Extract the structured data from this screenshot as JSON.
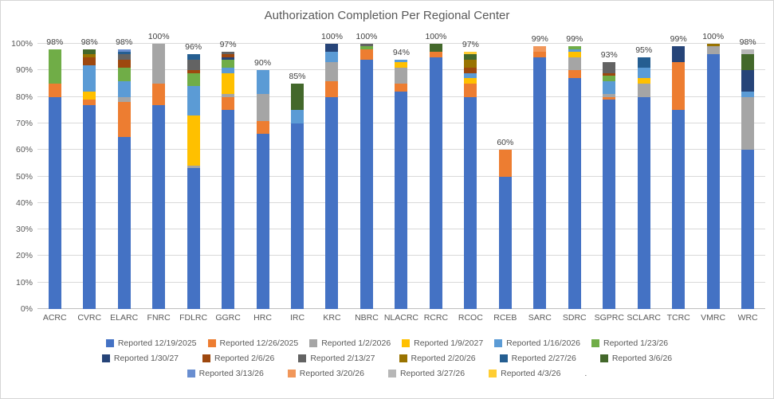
{
  "title": "Authorization Completion Per Regional Center",
  "chart_data": {
    "type": "bar",
    "stacked": true,
    "title": "Authorization Completion Per Regional Center",
    "xlabel": "",
    "ylabel": "",
    "ylim": [
      0,
      100
    ],
    "ytick_labels": [
      "0%",
      "10%",
      "20%",
      "30%",
      "40%",
      "50%",
      "60%",
      "70%",
      "80%",
      "90%",
      "100%"
    ],
    "grid": true,
    "legend_position": "bottom",
    "series": [
      {
        "name": "Reported 12/19/2025",
        "color": "#4472C4"
      },
      {
        "name": "Reported 12/26/2025",
        "color": "#ED7D31"
      },
      {
        "name": "Reported 1/2/2026",
        "color": "#A5A5A5"
      },
      {
        "name": "Reported 1/9/2027",
        "color": "#FFC000"
      },
      {
        "name": "Reported 1/16/2026",
        "color": "#5B9BD5"
      },
      {
        "name": "Reported 1/23/26",
        "color": "#70AD47"
      },
      {
        "name": "Reported 1/30/27",
        "color": "#264478"
      },
      {
        "name": "Reported 2/6/26",
        "color": "#9E480E"
      },
      {
        "name": "Reported 2/13/27",
        "color": "#636363"
      },
      {
        "name": "Reported 2/20/26",
        "color": "#997300"
      },
      {
        "name": "Reported 2/27/26",
        "color": "#255E91"
      },
      {
        "name": "Reported 3/6/26",
        "color": "#43682B"
      },
      {
        "name": "Reported 3/13/26",
        "color": "#698ED0"
      },
      {
        "name": "Reported 3/20/26",
        "color": "#F1975A"
      },
      {
        "name": "Reported 3/27/26",
        "color": "#B7B7B7"
      },
      {
        "name": "Reported 4/3/26",
        "color": "#FFCD33"
      },
      {
        "name": ".",
        "color": null
      }
    ],
    "legend_rows": [
      [
        0,
        1,
        2,
        3,
        4,
        5
      ],
      [
        6,
        7,
        8,
        9,
        10,
        11
      ],
      [
        12,
        13,
        14,
        15,
        16
      ]
    ],
    "categories": [
      "ACRC",
      "CVRC",
      "ELARC",
      "FNRC",
      "FDLRC",
      "GGRC",
      "HRC",
      "IRC",
      "KRC",
      "NBRC",
      "NLACRC",
      "RCRC",
      "RCOC",
      "RCEB",
      "SARC",
      "SDRC",
      "SGPRC",
      "SCLARC",
      "TCRC",
      "VMRC",
      "WRC"
    ],
    "bar_totals": [
      "98%",
      "98%",
      "98%",
      "100%",
      "96%",
      "97%",
      "90%",
      "85%",
      "100%",
      "100%",
      "94%",
      "100%",
      "97%",
      "60%",
      "99%",
      "99%",
      "93%",
      "95%",
      "99%",
      "100%",
      "98%"
    ],
    "bars": [
      {
        "category": "ACRC",
        "total_label": "98%",
        "segments": [
          {
            "series": "Reported 12/19/2025",
            "value": 80
          },
          {
            "series": "Reported 12/26/2025",
            "value": 5
          },
          {
            "series": "Reported 1/23/26",
            "value": 13
          }
        ]
      },
      {
        "category": "CVRC",
        "total_label": "98%",
        "segments": [
          {
            "series": "Reported 12/19/2025",
            "value": 77
          },
          {
            "series": "Reported 12/26/2025",
            "value": 2
          },
          {
            "series": "Reported 1/9/2027",
            "value": 3
          },
          {
            "series": "Reported 1/16/2026",
            "value": 10
          },
          {
            "series": "Reported 2/6/26",
            "value": 3
          },
          {
            "series": "Reported 2/20/26",
            "value": 1
          },
          {
            "series": "Reported 3/6/26",
            "value": 2
          }
        ]
      },
      {
        "category": "ELARC",
        "total_label": "98%",
        "segments": [
          {
            "series": "Reported 12/19/2025",
            "value": 65
          },
          {
            "series": "Reported 12/26/2025",
            "value": 13
          },
          {
            "series": "Reported 1/2/2026",
            "value": 2
          },
          {
            "series": "Reported 1/16/2026",
            "value": 6
          },
          {
            "series": "Reported 1/23/26",
            "value": 5
          },
          {
            "series": "Reported 2/6/26",
            "value": 3
          },
          {
            "series": "Reported 2/13/27",
            "value": 2
          },
          {
            "series": "Reported 2/27/26",
            "value": 1
          },
          {
            "series": "Reported 3/13/26",
            "value": 1
          }
        ]
      },
      {
        "category": "FNRC",
        "total_label": "100%",
        "segments": [
          {
            "series": "Reported 12/19/2025",
            "value": 77
          },
          {
            "series": "Reported 12/26/2025",
            "value": 8
          },
          {
            "series": "Reported 1/2/2026",
            "value": 15
          }
        ]
      },
      {
        "category": "FDLRC",
        "total_label": "96%",
        "segments": [
          {
            "series": "Reported 12/19/2025",
            "value": 53
          },
          {
            "series": "Reported 1/2/2026",
            "value": 1
          },
          {
            "series": "Reported 1/9/2027",
            "value": 19
          },
          {
            "series": "Reported 1/16/2026",
            "value": 11
          },
          {
            "series": "Reported 1/23/26",
            "value": 5
          },
          {
            "series": "Reported 2/6/26",
            "value": 1
          },
          {
            "series": "Reported 2/13/27",
            "value": 4
          },
          {
            "series": "Reported 2/27/26",
            "value": 2
          }
        ]
      },
      {
        "category": "GGRC",
        "total_label": "97%",
        "segments": [
          {
            "series": "Reported 12/19/2025",
            "value": 75
          },
          {
            "series": "Reported 12/26/2025",
            "value": 5
          },
          {
            "series": "Reported 1/2/2026",
            "value": 1
          },
          {
            "series": "Reported 1/9/2027",
            "value": 8
          },
          {
            "series": "Reported 1/16/2026",
            "value": 2
          },
          {
            "series": "Reported 1/23/26",
            "value": 3
          },
          {
            "series": "Reported 1/30/27",
            "value": 1
          },
          {
            "series": "Reported 2/6/26",
            "value": 1
          },
          {
            "series": "Reported 2/13/27",
            "value": 1
          }
        ]
      },
      {
        "category": "HRC",
        "total_label": "90%",
        "segments": [
          {
            "series": "Reported 12/19/2025",
            "value": 66
          },
          {
            "series": "Reported 12/26/2025",
            "value": 5
          },
          {
            "series": "Reported 1/2/2026",
            "value": 10
          },
          {
            "series": "Reported 1/16/2026",
            "value": 9
          }
        ]
      },
      {
        "category": "IRC",
        "total_label": "85%",
        "segments": [
          {
            "series": "Reported 12/19/2025",
            "value": 70
          },
          {
            "series": "Reported 1/16/2026",
            "value": 5
          },
          {
            "series": "Reported 3/6/26",
            "value": 10
          }
        ]
      },
      {
        "category": "KRC",
        "total_label": "100%",
        "segments": [
          {
            "series": "Reported 12/19/2025",
            "value": 80
          },
          {
            "series": "Reported 12/26/2025",
            "value": 6
          },
          {
            "series": "Reported 1/2/2026",
            "value": 7
          },
          {
            "series": "Reported 1/16/2026",
            "value": 4
          },
          {
            "series": "Reported 1/30/27",
            "value": 3
          }
        ]
      },
      {
        "category": "NBRC",
        "total_label": "100%",
        "segments": [
          {
            "series": "Reported 12/19/2025",
            "value": 94
          },
          {
            "series": "Reported 12/26/2025",
            "value": 4
          },
          {
            "series": "Reported 1/23/26",
            "value": 1
          },
          {
            "series": "Reported 2/13/27",
            "value": 1
          }
        ]
      },
      {
        "category": "NLACRC",
        "total_label": "94%",
        "segments": [
          {
            "series": "Reported 12/19/2025",
            "value": 82
          },
          {
            "series": "Reported 12/26/2025",
            "value": 3
          },
          {
            "series": "Reported 1/2/2026",
            "value": 6
          },
          {
            "series": "Reported 1/9/2027",
            "value": 2
          },
          {
            "series": "Reported 1/16/2026",
            "value": 1
          }
        ]
      },
      {
        "category": "RCRC",
        "total_label": "100%",
        "segments": [
          {
            "series": "Reported 12/19/2025",
            "value": 95
          },
          {
            "series": "Reported 12/26/2025",
            "value": 2
          },
          {
            "series": "Reported 3/6/26",
            "value": 3
          }
        ]
      },
      {
        "category": "RCOC",
        "total_label": "97%",
        "segments": [
          {
            "series": "Reported 12/19/2025",
            "value": 80
          },
          {
            "series": "Reported 12/26/2025",
            "value": 5
          },
          {
            "series": "Reported 1/9/2027",
            "value": 2
          },
          {
            "series": "Reported 1/16/2026",
            "value": 2
          },
          {
            "series": "Reported 2/6/26",
            "value": 2
          },
          {
            "series": "Reported 2/20/26",
            "value": 3
          },
          {
            "series": "Reported 3/6/26",
            "value": 2
          },
          {
            "series": "Reported 4/3/26",
            "value": 1
          }
        ]
      },
      {
        "category": "RCEB",
        "total_label": "60%",
        "segments": [
          {
            "series": "Reported 12/19/2025",
            "value": 50
          },
          {
            "series": "Reported 12/26/2025",
            "value": 10
          }
        ]
      },
      {
        "category": "SARC",
        "total_label": "99%",
        "segments": [
          {
            "series": "Reported 12/19/2025",
            "value": 95
          },
          {
            "series": "Reported 12/26/2025",
            "value": 2
          },
          {
            "series": "Reported 3/20/26",
            "value": 2
          }
        ]
      },
      {
        "category": "SDRC",
        "total_label": "99%",
        "segments": [
          {
            "series": "Reported 12/19/2025",
            "value": 87
          },
          {
            "series": "Reported 12/26/2025",
            "value": 3
          },
          {
            "series": "Reported 1/2/2026",
            "value": 5
          },
          {
            "series": "Reported 1/9/2027",
            "value": 2
          },
          {
            "series": "Reported 1/16/2026",
            "value": 1
          },
          {
            "series": "Reported 1/23/26",
            "value": 1
          }
        ]
      },
      {
        "category": "SGPRC",
        "total_label": "93%",
        "segments": [
          {
            "series": "Reported 12/19/2025",
            "value": 79
          },
          {
            "series": "Reported 12/26/2025",
            "value": 1
          },
          {
            "series": "Reported 1/2/2026",
            "value": 1
          },
          {
            "series": "Reported 1/16/2026",
            "value": 5
          },
          {
            "series": "Reported 1/23/26",
            "value": 2
          },
          {
            "series": "Reported 2/6/26",
            "value": 1
          },
          {
            "series": "Reported 2/13/27",
            "value": 4
          }
        ]
      },
      {
        "category": "SCLARC",
        "total_label": "95%",
        "segments": [
          {
            "series": "Reported 12/19/2025",
            "value": 80
          },
          {
            "series": "Reported 1/2/2026",
            "value": 5
          },
          {
            "series": "Reported 1/9/2027",
            "value": 2
          },
          {
            "series": "Reported 1/16/2026",
            "value": 4
          },
          {
            "series": "Reported 2/27/26",
            "value": 4
          }
        ]
      },
      {
        "category": "TCRC",
        "total_label": "99%",
        "segments": [
          {
            "series": "Reported 12/19/2025",
            "value": 75
          },
          {
            "series": "Reported 12/26/2025",
            "value": 18
          },
          {
            "series": "Reported 1/30/27",
            "value": 6
          }
        ]
      },
      {
        "category": "VMRC",
        "total_label": "100%",
        "segments": [
          {
            "series": "Reported 12/19/2025",
            "value": 96
          },
          {
            "series": "Reported 1/2/2026",
            "value": 3
          },
          {
            "series": "Reported 2/20/26",
            "value": 1
          }
        ]
      },
      {
        "category": "WRC",
        "total_label": "98%",
        "segments": [
          {
            "series": "Reported 12/19/2025",
            "value": 60
          },
          {
            "series": "Reported 1/2/2026",
            "value": 20
          },
          {
            "series": "Reported 1/16/2026",
            "value": 2
          },
          {
            "series": "Reported 1/30/27",
            "value": 8
          },
          {
            "series": "Reported 3/6/26",
            "value": 6
          },
          {
            "series": "Reported 3/27/26",
            "value": 2
          }
        ]
      }
    ]
  }
}
